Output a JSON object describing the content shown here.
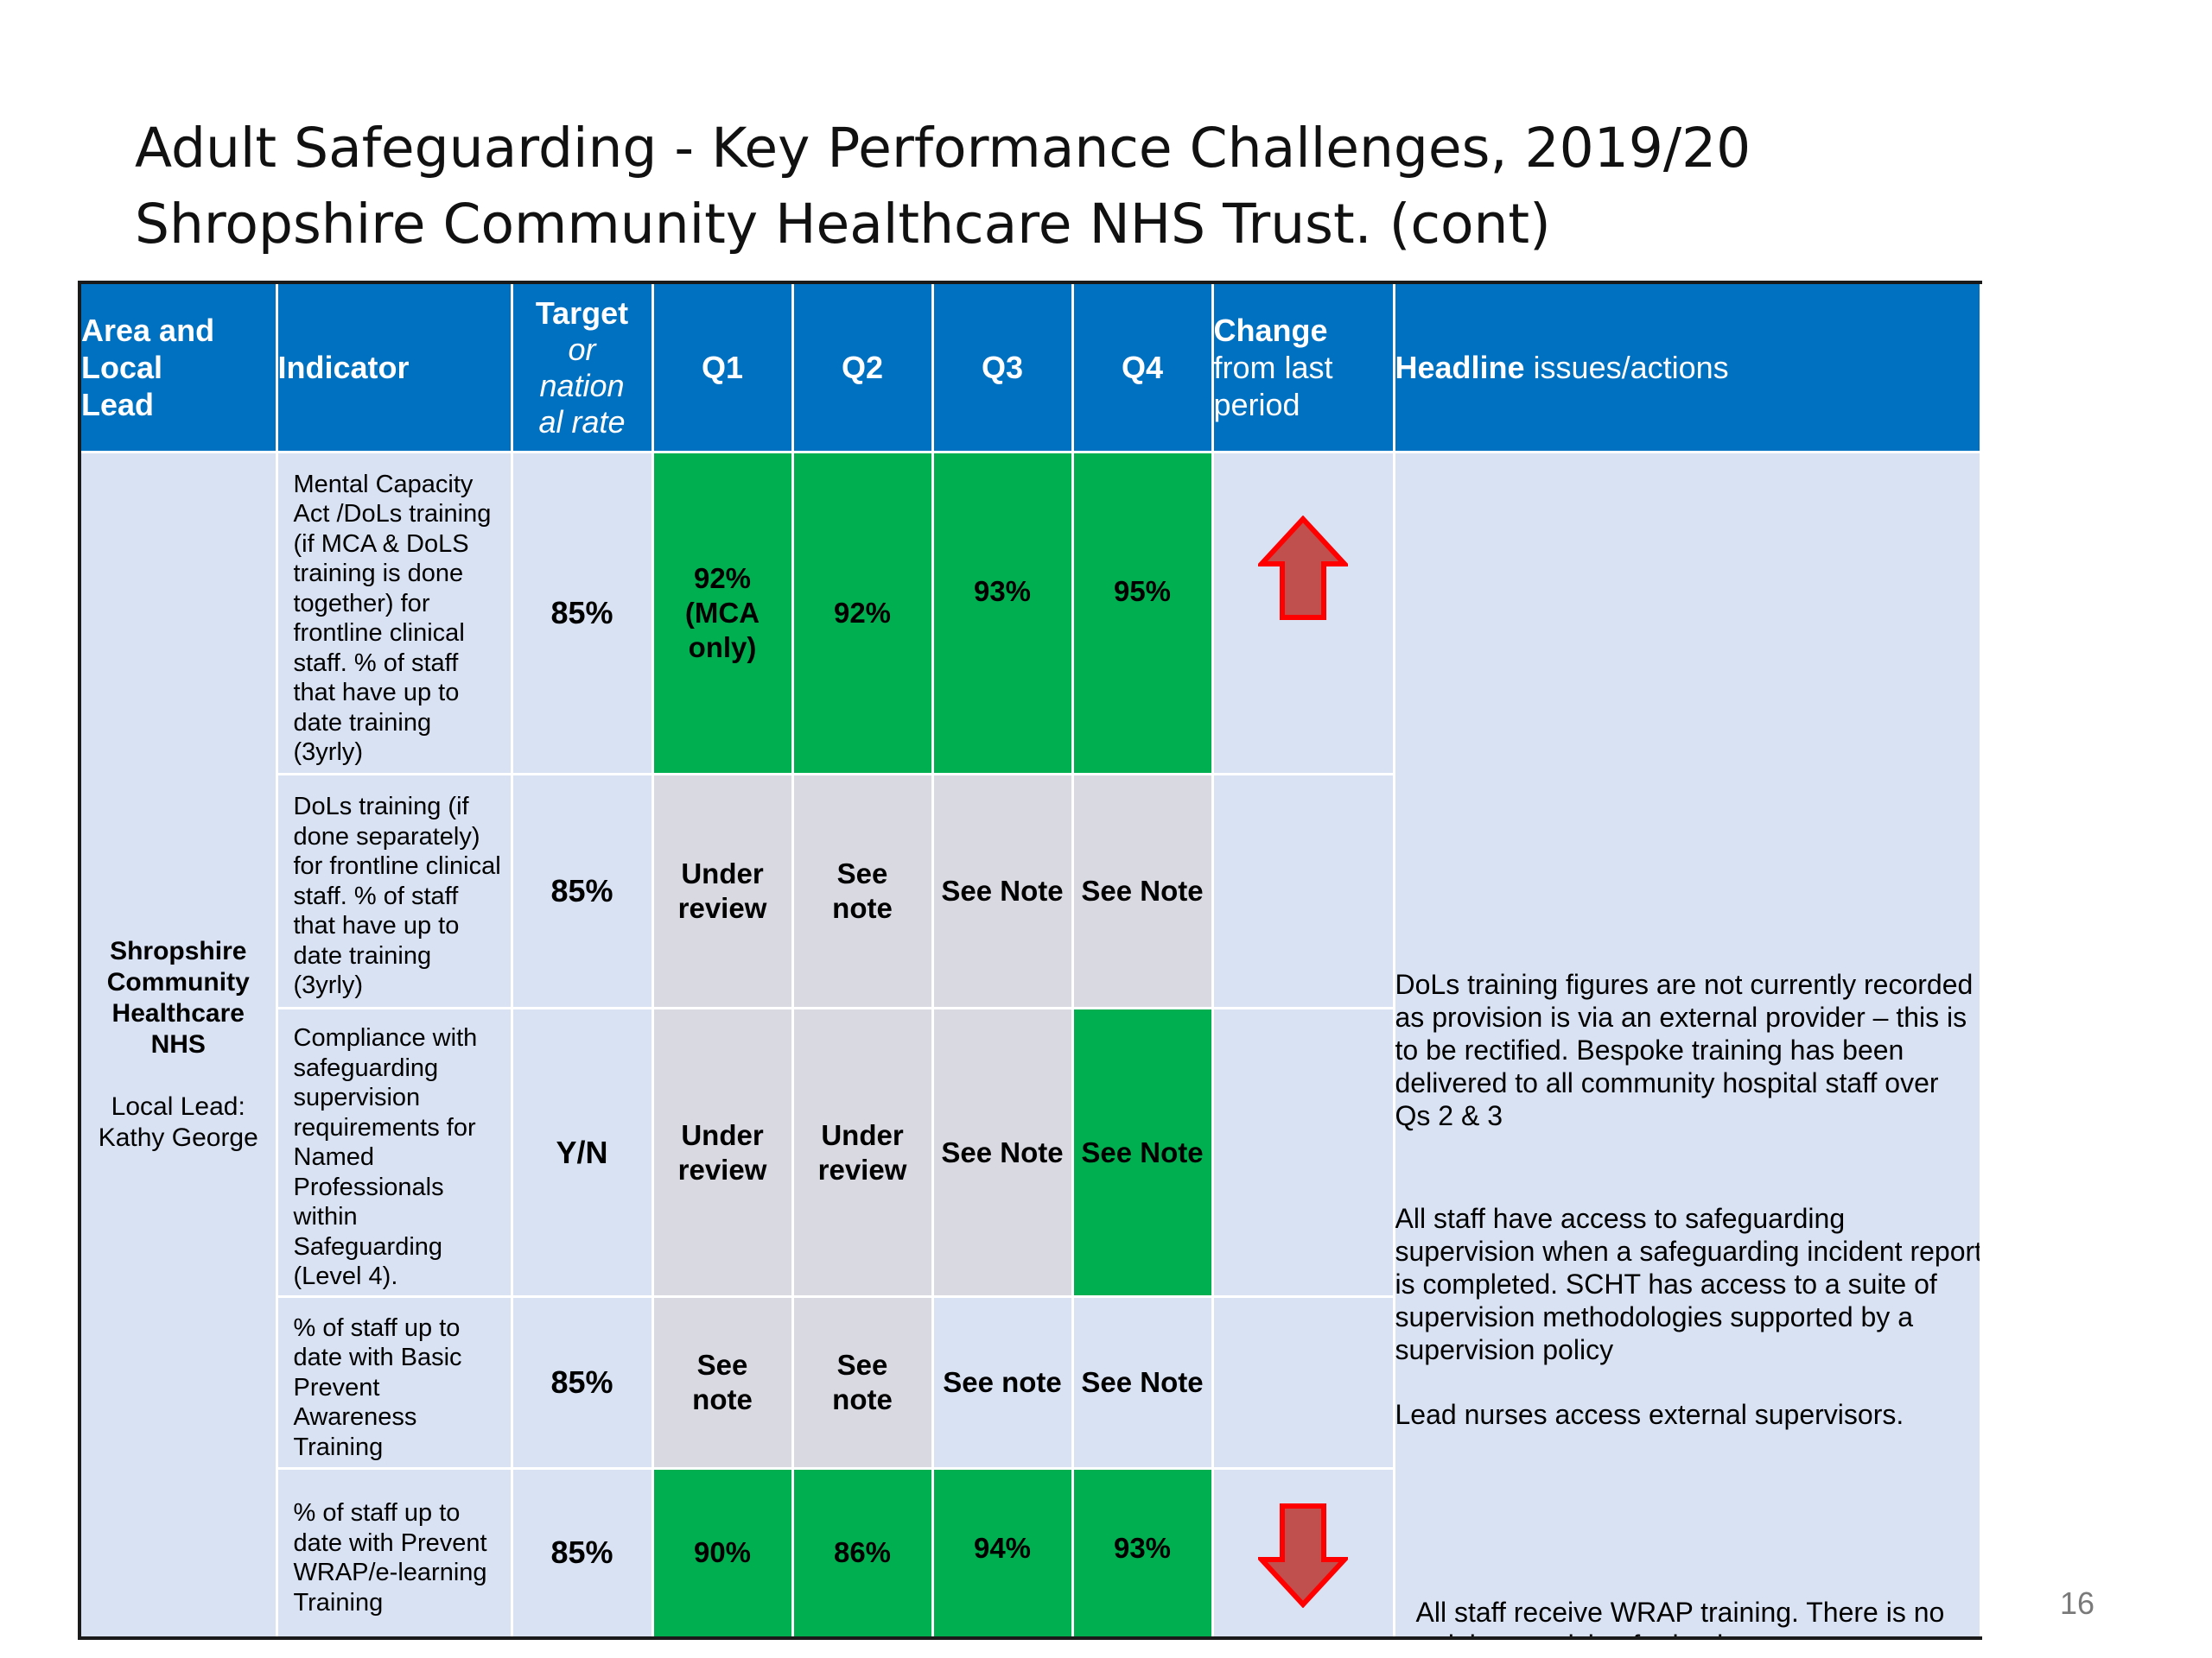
{
  "slide": {
    "title": "Adult Safeguarding - Key Performance Challenges, 2019/20 Shropshire Community Healthcare NHS Trust. (cont)",
    "page_number": "16"
  },
  "table": {
    "headers": {
      "area": "Area and Local Lead",
      "indicator": "Indicator",
      "target_line1": "Target",
      "target_line2": "or",
      "target_line3": "nation",
      "target_line4": "al rate",
      "q1": "Q1",
      "q2": "Q2",
      "q3": "Q3",
      "q4": "Q4",
      "change_bold": "Change",
      "change_rest": "from last period",
      "headline_bold": "Headline",
      "headline_rest": " issues/actions"
    },
    "area": {
      "org": "Shropshire Community Healthcare NHS",
      "lead": "Local Lead: Kathy George"
    },
    "rows": [
      {
        "indicator": "Mental Capacity Act /DoLs training  (if MCA & DoLS training is done together) for frontline clinical staff. % of staff that have up to date training  (3yrly)",
        "target": "85%",
        "q1": "92% (MCA only)",
        "q2": "92%",
        "q3": "93%",
        "q4": "95%",
        "change": "up-arrow-icon"
      },
      {
        "indicator": "DoLs training (if done separately) for frontline clinical staff. % of staff that have up to date training (3yrly)",
        "target": "85%",
        "q1": "Under review",
        "q2": "See note",
        "q3": "See Note",
        "q4": "See Note",
        "change": ""
      },
      {
        "indicator": "Compliance with safeguarding supervision requirements for Named Professionals within Safeguarding (Level 4).",
        "target": "Y/N",
        "q1": "Under review",
        "q2": "Under review",
        "q3": "See Note",
        "q4": "See Note",
        "change": ""
      },
      {
        "indicator": "% of staff up to date with Basic Prevent Awareness Training",
        "target": "85%",
        "q1": "See note",
        "q2": "See note",
        "q3": "See note",
        "q4": "See Note",
        "change": ""
      },
      {
        "indicator": "% of staff up to date with Prevent WRAP/e-learning Training",
        "target": "85%",
        "q1": "90%",
        "q2": "86%",
        "q3": "94%",
        "q4": "93%",
        "change": "down-arrow-icon"
      }
    ],
    "headline": {
      "dols_note": "DoLs training figures are not currently recorded as provision is via an external provider – this is to be rectified. Bespoke training has been delivered to all community hospital staff over Qs 2 & 3",
      "supervision_note": "All staff have access to safeguarding supervision when a safeguarding incident report is completed. SCHT has access to a suite of supervision methodologies supported by a supervision policy",
      "supervisors_note": "Lead nurses access external supervisors.",
      "wrap_note": "All staff receive WRAP training. There is no training provision for basic prevent awareness"
    }
  },
  "colors": {
    "header_blue": "#0070c0",
    "cell_light_blue": "#d9e2f3",
    "cell_grey": "#d9d9e1",
    "green_status": "#00b050",
    "arrow_red": "#c0504d",
    "arrow_outline": "#ff0000"
  }
}
